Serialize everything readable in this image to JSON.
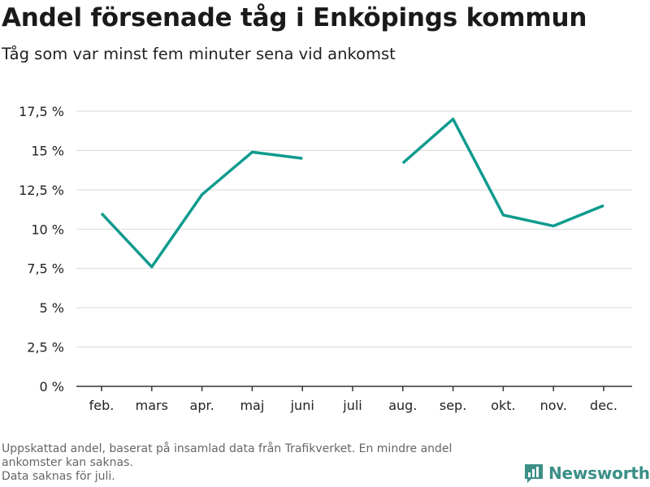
{
  "header": {
    "title": "Andel försenade tåg i Enköpings kommun",
    "subtitle": "Tåg som var minst fem minuter sena vid ankomst"
  },
  "footnote": {
    "lines": [
      "Uppskattad andel, baserat på insamlad data från Trafikverket. En mindre andel\nankomster kan saknas.",
      "Data saknas för juli."
    ]
  },
  "brand": {
    "name": "Newsworthy",
    "color": "#3a8f86",
    "icon": "bar-chart-logo-icon"
  },
  "chart_data": {
    "type": "line",
    "categories": [
      "feb.",
      "mars",
      "apr.",
      "maj",
      "juni",
      "juli",
      "aug.",
      "sep.",
      "okt.",
      "nov.",
      "dec."
    ],
    "series": [
      {
        "values": [
          11.0,
          7.6,
          12.2,
          14.9,
          14.5,
          null,
          14.2,
          17.0,
          10.9,
          10.2,
          11.5
        ],
        "color": "#0f9b8e"
      }
    ],
    "yticks": [
      {
        "value": 0,
        "label": "0 %"
      },
      {
        "value": 2.5,
        "label": "2,5 %"
      },
      {
        "value": 5,
        "label": "5 %"
      },
      {
        "value": 7.5,
        "label": "7,5 %"
      },
      {
        "value": 10,
        "label": "10 %"
      },
      {
        "value": 12.5,
        "label": "12,5 %"
      },
      {
        "value": 15,
        "label": "15 %"
      },
      {
        "value": 17.5,
        "label": "17,5 %"
      }
    ],
    "ylim": [
      0,
      17.5
    ],
    "grid": true
  }
}
